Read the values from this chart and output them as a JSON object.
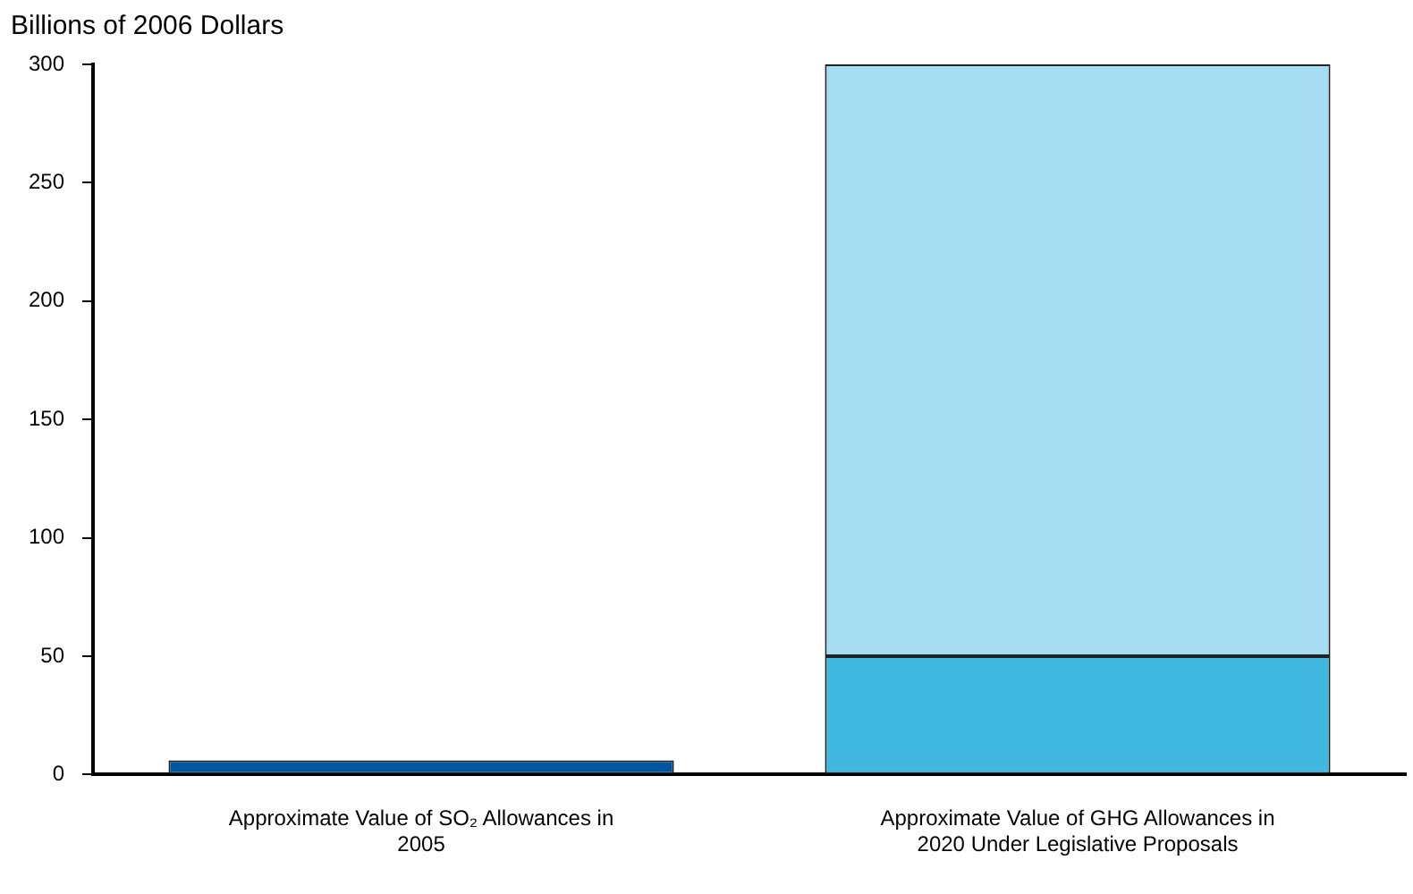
{
  "chart_data": {
    "type": "bar",
    "ylabel": "Billions of 2006 Dollars",
    "categories": [
      "Approximate Value of SO₂ Allowances in 2005",
      "Approximate Value of GHG Allowances in 2020 Under Legislative Proposals"
    ],
    "stacked": true,
    "series": [
      {
        "colors": [
          "#0057a0",
          "#41b8e0"
        ],
        "values": [
          6,
          50
        ]
      },
      {
        "color": "#a6dcf2",
        "values": [
          null,
          250
        ]
      }
    ],
    "ylim": [
      0,
      300
    ],
    "yticks": [
      0,
      50,
      100,
      150,
      200,
      250,
      300
    ],
    "grid": false,
    "legend": false
  }
}
